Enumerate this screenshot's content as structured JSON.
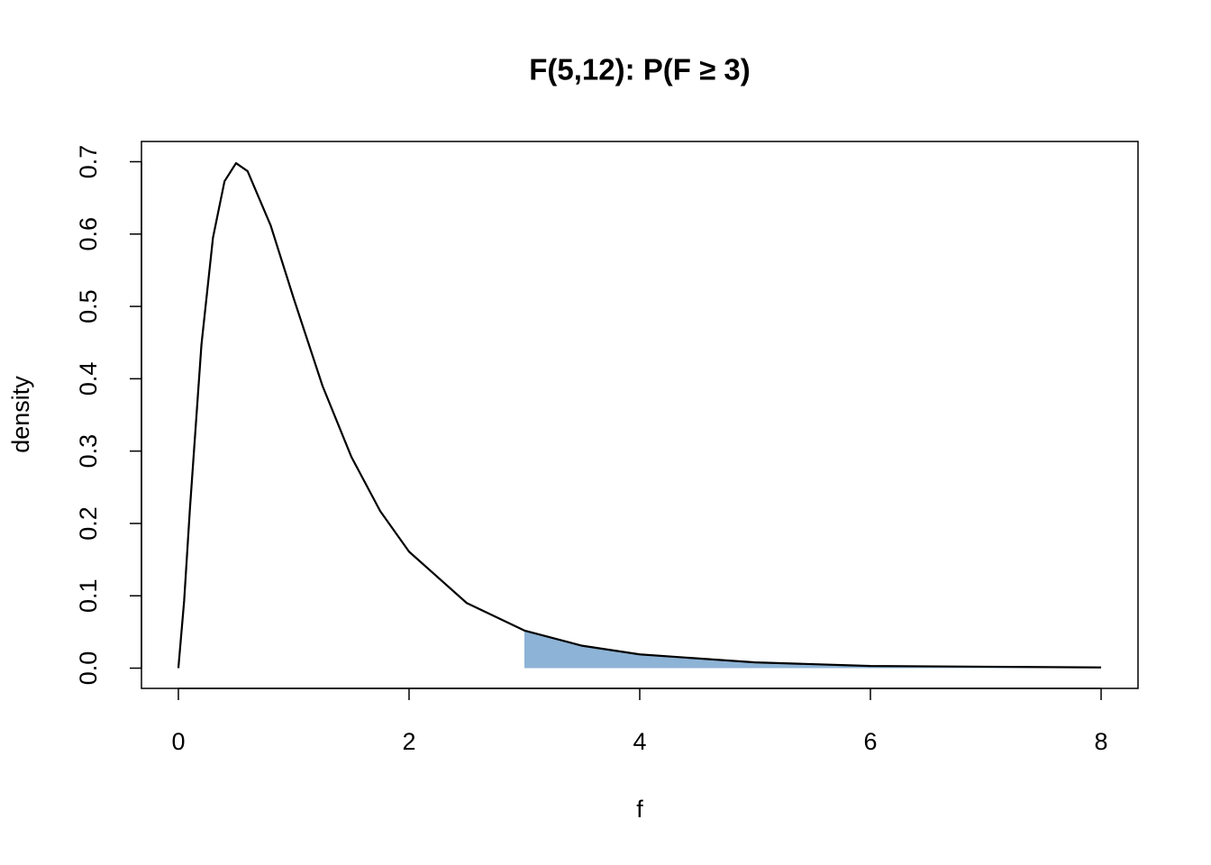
{
  "chart_data": {
    "type": "line",
    "title": "F(5,12): P(F ≥ 3)",
    "x_label": "f",
    "y_label": "density",
    "x": [
      0,
      0.05,
      0.1,
      0.2,
      0.3,
      0.4,
      0.5,
      0.6,
      0.8,
      1,
      1.25,
      1.5,
      1.75,
      2,
      2.5,
      3,
      3.5,
      4,
      5,
      6,
      7,
      8
    ],
    "series": [
      {
        "color": "#000000",
        "values": [
          0,
          0.093,
          0.22,
          0.447,
          0.595,
          0.673,
          0.698,
          0.687,
          0.612,
          0.511,
          0.39,
          0.292,
          0.217,
          0.161,
          0.09,
          0.052,
          0.031,
          0.019,
          0.008,
          0.003,
          0.002,
          0.001
        ]
      }
    ],
    "shade": {
      "from": 3,
      "color": "#8db3d6"
    },
    "xlim": [
      -0.32,
      8.32
    ],
    "xticks": [
      0,
      2,
      4,
      6,
      8
    ],
    "ylim": [
      -0.028,
      0.728
    ],
    "yticks": [
      {
        "value": 0,
        "label": "0.0"
      },
      0.1,
      0.2,
      0.3,
      0.4,
      0.5,
      0.6,
      0.7
    ]
  }
}
